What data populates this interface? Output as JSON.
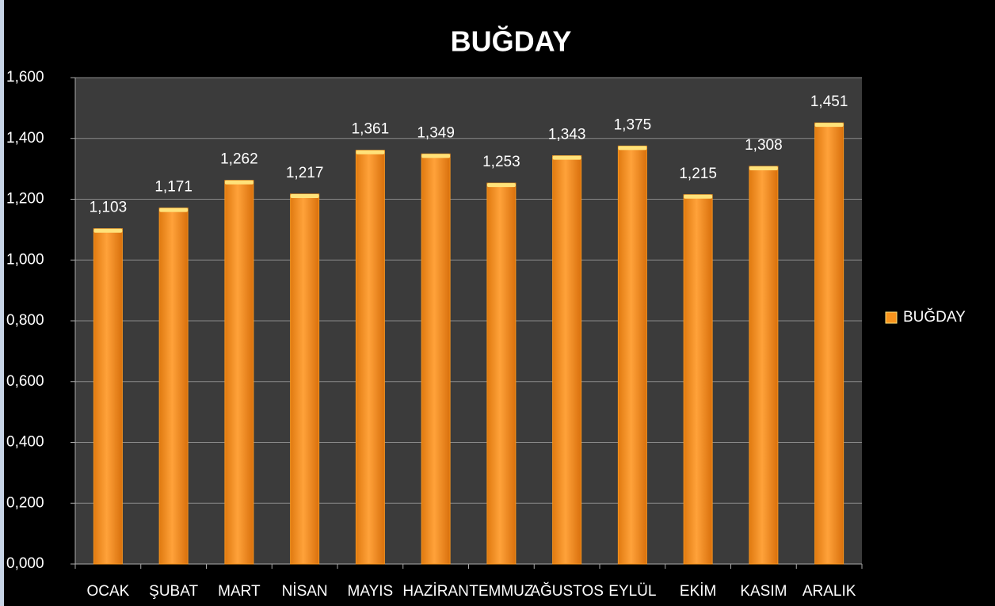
{
  "chart_data": {
    "type": "bar",
    "title": "BUĞDAY",
    "categories": [
      "OCAK",
      "ŞUBAT",
      "MART",
      "NİSAN",
      "MAYIS",
      "HAZİRAN",
      "TEMMUZ",
      "AĞUSTOS",
      "EYLÜL",
      "EKİM",
      "KASIM",
      "ARALIK"
    ],
    "series": [
      {
        "name": "BUĞDAY",
        "color": "#f7941d",
        "values": [
          1.103,
          1.171,
          1.262,
          1.217,
          1.361,
          1.349,
          1.253,
          1.343,
          1.375,
          1.215,
          1.308,
          1.451
        ],
        "value_labels": [
          "1,103",
          "1,171",
          "1,262",
          "1,217",
          "1,361",
          "1,349",
          "1,253",
          "1,343",
          "1,375",
          "1,215",
          "1,308",
          "1,451"
        ]
      }
    ],
    "ylim": [
      0,
      1.6
    ],
    "yticks": [
      {
        "value": 0,
        "label": "0,000"
      },
      {
        "value": 0.2,
        "label": "0,200"
      },
      {
        "value": 0.4,
        "label": "0,400"
      },
      {
        "value": 0.6,
        "label": "0,600"
      },
      {
        "value": 0.8,
        "label": "0,800"
      },
      {
        "value": 1.0,
        "label": "1,000"
      },
      {
        "value": 1.2,
        "label": "1,200"
      },
      {
        "value": 1.4,
        "label": "1,400"
      },
      {
        "value": 1.6,
        "label": "1,600"
      }
    ],
    "grid": true,
    "legend": "right"
  }
}
